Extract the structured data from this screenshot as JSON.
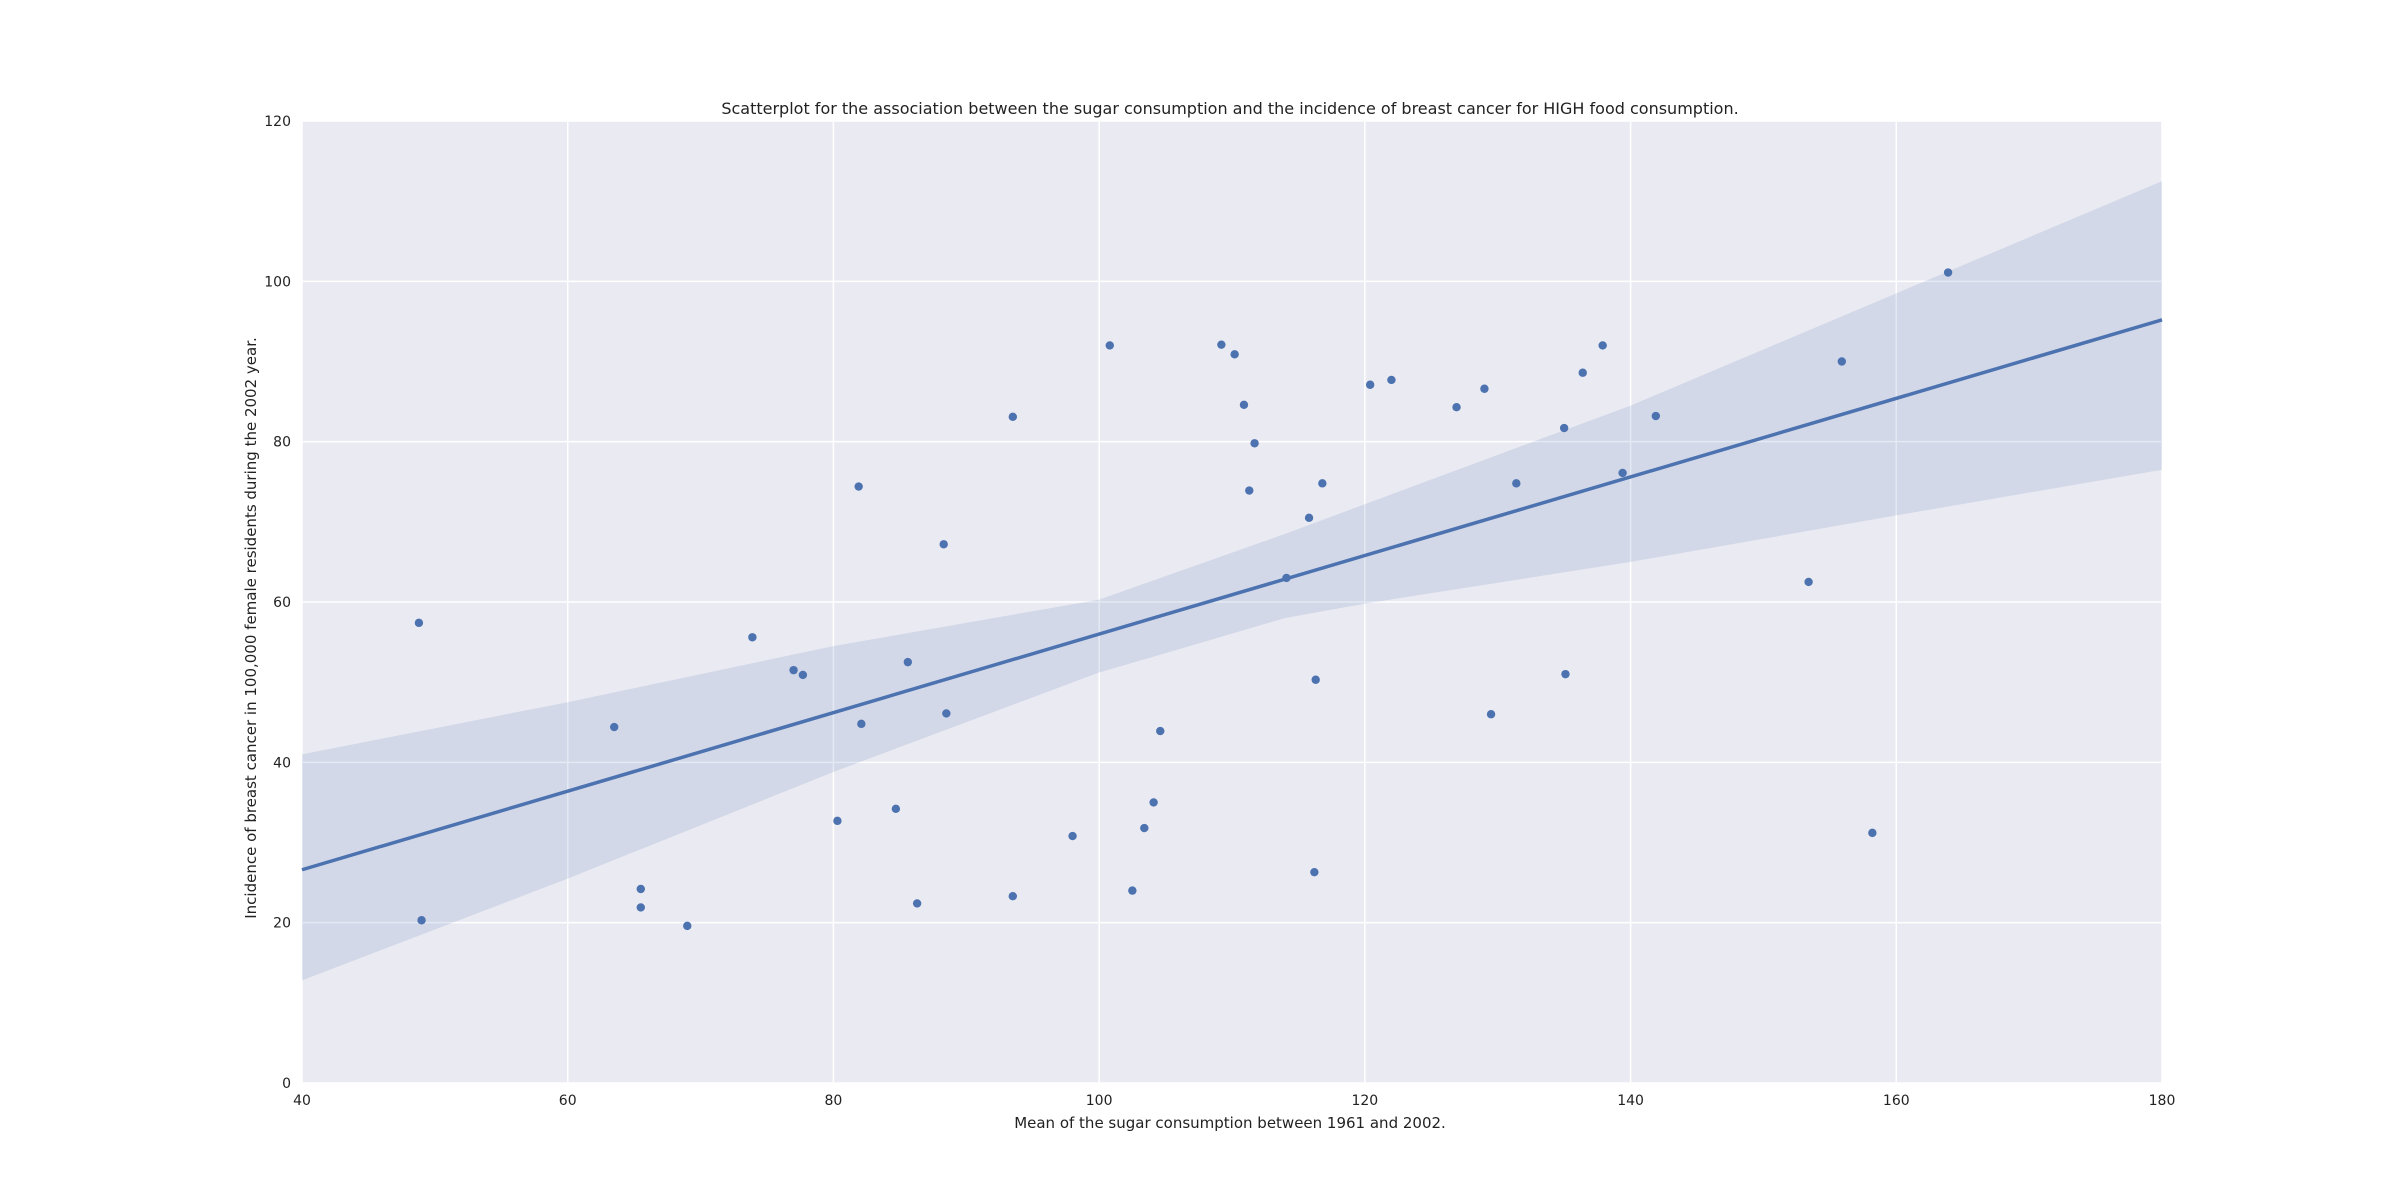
{
  "chart_data": {
    "type": "scatter",
    "title": "Scatterplot for the association between the sugar consumption and the incidence of breast cancer for HIGH food consumption.",
    "xlabel": "Mean of the sugar consumption between 1961 and 2002.",
    "ylabel": "Incidence of breast cancer in 100,000 female residents during the 2002 year.",
    "xlim": [
      40,
      180
    ],
    "ylim": [
      0,
      120
    ],
    "xticks": [
      40,
      60,
      80,
      100,
      120,
      140,
      160,
      180
    ],
    "yticks": [
      0,
      20,
      40,
      60,
      80,
      100,
      120
    ],
    "grid": true,
    "colors": {
      "background": "#EAEAF2",
      "grid": "#FFFFFF",
      "point": "#4C72B0",
      "line": "#4C72B0",
      "band": "#4C72B0"
    },
    "points": [
      {
        "x": 48.8,
        "y": 57.4
      },
      {
        "x": 49.0,
        "y": 20.3
      },
      {
        "x": 63.5,
        "y": 44.4
      },
      {
        "x": 65.5,
        "y": 24.2
      },
      {
        "x": 65.5,
        "y": 21.9
      },
      {
        "x": 69.0,
        "y": 19.6
      },
      {
        "x": 73.9,
        "y": 55.6
      },
      {
        "x": 77.0,
        "y": 51.5
      },
      {
        "x": 77.7,
        "y": 50.9
      },
      {
        "x": 80.3,
        "y": 32.7
      },
      {
        "x": 81.9,
        "y": 74.4
      },
      {
        "x": 82.1,
        "y": 44.8
      },
      {
        "x": 84.7,
        "y": 34.2
      },
      {
        "x": 85.6,
        "y": 52.5
      },
      {
        "x": 86.3,
        "y": 22.4
      },
      {
        "x": 88.3,
        "y": 67.2
      },
      {
        "x": 88.5,
        "y": 46.1
      },
      {
        "x": 93.5,
        "y": 83.1
      },
      {
        "x": 93.5,
        "y": 23.3
      },
      {
        "x": 98.0,
        "y": 30.8
      },
      {
        "x": 100.8,
        "y": 92.0
      },
      {
        "x": 102.5,
        "y": 24.0
      },
      {
        "x": 103.4,
        "y": 31.8
      },
      {
        "x": 104.1,
        "y": 35.0
      },
      {
        "x": 104.6,
        "y": 43.9
      },
      {
        "x": 109.2,
        "y": 92.1
      },
      {
        "x": 110.2,
        "y": 90.9
      },
      {
        "x": 110.9,
        "y": 84.6
      },
      {
        "x": 111.3,
        "y": 73.9
      },
      {
        "x": 111.7,
        "y": 79.8
      },
      {
        "x": 114.1,
        "y": 63.0
      },
      {
        "x": 115.8,
        "y": 70.5
      },
      {
        "x": 116.2,
        "y": 26.3
      },
      {
        "x": 116.3,
        "y": 50.3
      },
      {
        "x": 116.8,
        "y": 74.8
      },
      {
        "x": 120.4,
        "y": 87.1
      },
      {
        "x": 122.0,
        "y": 87.7
      },
      {
        "x": 126.9,
        "y": 84.3
      },
      {
        "x": 129.0,
        "y": 86.6
      },
      {
        "x": 129.5,
        "y": 46.0
      },
      {
        "x": 131.4,
        "y": 74.8
      },
      {
        "x": 135.0,
        "y": 81.7
      },
      {
        "x": 135.1,
        "y": 51.0
      },
      {
        "x": 136.4,
        "y": 88.6
      },
      {
        "x": 137.9,
        "y": 92.0
      },
      {
        "x": 139.4,
        "y": 76.1
      },
      {
        "x": 141.9,
        "y": 83.2
      },
      {
        "x": 153.4,
        "y": 62.5
      },
      {
        "x": 155.9,
        "y": 90.0
      },
      {
        "x": 158.2,
        "y": 31.2
      },
      {
        "x": 163.9,
        "y": 101.1
      }
    ],
    "regression_line": {
      "x": [
        40,
        180
      ],
      "y": [
        26.6,
        95.2
      ]
    },
    "confidence_band": {
      "x": [
        40,
        60,
        80,
        100,
        114,
        120,
        140,
        160,
        180
      ],
      "upper": [
        41.0,
        47.5,
        54.5,
        60.3,
        68.5,
        72.2,
        84.5,
        98.5,
        112.5
      ],
      "lower": [
        12.8,
        25.5,
        38.8,
        51.2,
        58.0,
        59.8,
        65.0,
        70.8,
        76.5
      ]
    }
  }
}
